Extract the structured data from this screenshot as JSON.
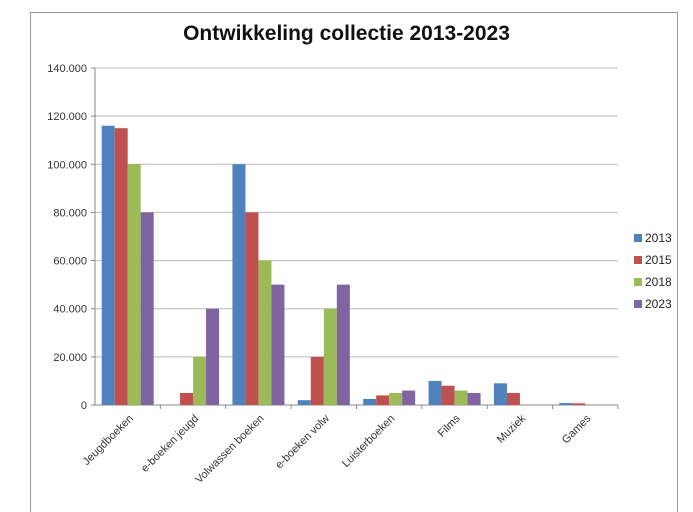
{
  "chart_data": {
    "type": "bar",
    "title": "Ontwikkeling collectie 2013-2023",
    "xlabel": "",
    "ylabel": "",
    "ylim": [
      0,
      140000
    ],
    "yticks": [
      "0",
      "20.000",
      "40.000",
      "60.000",
      "80.000",
      "100.000",
      "120.000",
      "140.000"
    ],
    "categories": [
      "Jeugdboeken",
      "e-boeken jeugd",
      "Volwassen boeken",
      "e-boeken volw",
      "Luisterboeken",
      "Films",
      "Muziek",
      "Games"
    ],
    "series": [
      {
        "name": "2013",
        "color": "#4f81bd",
        "values": [
          116000,
          0,
          100000,
          2000,
          2500,
          10000,
          9000,
          800
        ]
      },
      {
        "name": "2015",
        "color": "#c0504d",
        "values": [
          115000,
          5000,
          80000,
          20000,
          4000,
          8000,
          5000,
          700
        ]
      },
      {
        "name": "2018",
        "color": "#9bbb59",
        "values": [
          100000,
          20000,
          60000,
          40000,
          5000,
          6000,
          0,
          0
        ]
      },
      {
        "name": "2023",
        "color": "#8064a2",
        "values": [
          80000,
          40000,
          50000,
          50000,
          6000,
          5000,
          0,
          0
        ]
      }
    ],
    "grid": true,
    "legend": "right"
  }
}
